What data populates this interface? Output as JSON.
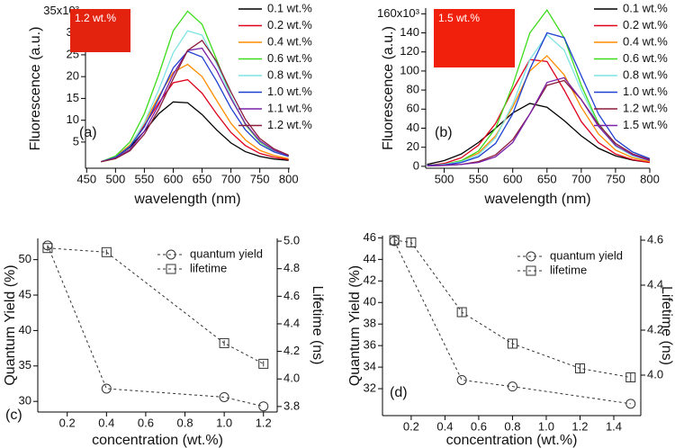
{
  "chart_data": [
    {
      "type": "line",
      "xlabel": "wavelength (nm)",
      "ylabel": "Fluorescence (a.u.)",
      "panel_label": "(a)",
      "inset": {
        "label": "1.2 wt.%",
        "color": "#e4230f"
      },
      "xlim": [
        448,
        802
      ],
      "ylim": [
        -1000,
        35500
      ],
      "xticks": [
        450,
        500,
        550,
        600,
        650,
        700,
        750,
        800
      ],
      "yticks": [
        {
          "value": 5000,
          "label": "5"
        },
        {
          "value": 10000,
          "label": "10"
        },
        {
          "value": 15000,
          "label": "15"
        },
        {
          "value": 20000,
          "label": "20"
        },
        {
          "value": 25000,
          "label": "25"
        },
        {
          "value": 30000,
          "label": "30"
        },
        {
          "value": 35000,
          "label": "35x10³"
        }
      ],
      "x": [
        475,
        500,
        525,
        550,
        575,
        600,
        625,
        650,
        675,
        700,
        725,
        750,
        775,
        800
      ],
      "series": [
        {
          "name": "0.1 wt.%",
          "color": "#000000",
          "values": [
            500,
            1500,
            3800,
            7500,
            11500,
            14200,
            14000,
            11300,
            7800,
            4800,
            2800,
            1700,
            1100,
            800
          ]
        },
        {
          "name": "0.2 wt.%",
          "color": "#e0001a",
          "values": [
            500,
            1600,
            4200,
            8800,
            14000,
            18600,
            19300,
            16200,
            11500,
            7200,
            4200,
            2400,
            1500,
            1000
          ]
        },
        {
          "name": "0.4 wt.%",
          "color": "#ff8c00",
          "values": [
            500,
            1600,
            4300,
            9300,
            15500,
            21000,
            22800,
            20000,
            14600,
            9300,
            5500,
            3100,
            1900,
            1200
          ]
        },
        {
          "name": "0.6 wt.%",
          "color": "#3ddc1a",
          "values": [
            500,
            1800,
            5000,
            11500,
            20500,
            30500,
            35000,
            32000,
            24000,
            15500,
            9000,
            5000,
            2900,
            1800
          ]
        },
        {
          "name": "0.8 wt.%",
          "color": "#7fe3e3",
          "values": [
            500,
            1500,
            4000,
            9500,
            17000,
            25500,
            30500,
            29500,
            23000,
            15500,
            9200,
            5200,
            3000,
            1900
          ]
        },
        {
          "name": "1.0 wt.%",
          "color": "#1f3fd0",
          "values": [
            500,
            1500,
            4000,
            8500,
            15000,
            22000,
            25800,
            24500,
            19000,
            12800,
            7800,
            4500,
            2700,
            1700
          ]
        },
        {
          "name": "1.1 wt.%",
          "color": "#7a22a8",
          "values": [
            500,
            1300,
            3300,
            7500,
            13500,
            20500,
            26000,
            26500,
            21500,
            15000,
            9200,
            5300,
            3100,
            1900
          ]
        },
        {
          "name": "1.2 wt.%",
          "color": "#8b1c3c",
          "values": [
            500,
            1200,
            3000,
            6800,
            12500,
            19500,
            26000,
            28300,
            23500,
            16500,
            10200,
            5800,
            3400,
            2000
          ]
        }
      ]
    },
    {
      "type": "line",
      "xlabel": "wavelength (nm)",
      "ylabel": "Fluorescence (a.u.)",
      "panel_label": "(b)",
      "inset": {
        "label": "1.5 wt.%",
        "color": "#f0200c"
      },
      "xlim": [
        473,
        800
      ],
      "ylim": [
        -2000,
        166000
      ],
      "xticks": [
        500,
        550,
        600,
        650,
        700,
        750,
        800
      ],
      "yticks": [
        0,
        {
          "value": 20000,
          "label": "20"
        },
        {
          "value": 40000,
          "label": "40"
        },
        {
          "value": 60000,
          "label": "60"
        },
        {
          "value": 80000,
          "label": "80"
        },
        {
          "value": 100000,
          "label": "100"
        },
        {
          "value": 120000,
          "label": "120"
        },
        {
          "value": 140000,
          "label": "140"
        },
        {
          "value": 160000,
          "label": "160x10³"
        }
      ],
      "x": [
        475,
        500,
        525,
        550,
        575,
        600,
        625,
        650,
        675,
        700,
        725,
        750,
        775,
        800
      ],
      "series": [
        {
          "name": "0.1 wt.%",
          "color": "#000000",
          "values": [
            2000,
            6000,
            13000,
            25000,
            40000,
            56000,
            66000,
            62000,
            48000,
            32000,
            19000,
            11000,
            6500,
            4000
          ]
        },
        {
          "name": "0.2 wt.%",
          "color": "#e0001a",
          "values": [
            1000,
            3000,
            9000,
            22000,
            45000,
            80000,
            112000,
            110000,
            80000,
            47000,
            25000,
            13000,
            7000,
            4000
          ]
        },
        {
          "name": "0.4 wt.%",
          "color": "#ff8c00",
          "values": [
            1000,
            2000,
            6000,
            14000,
            32000,
            62000,
            100000,
            116000,
            96000,
            62000,
            34000,
            17000,
            9000,
            5000
          ]
        },
        {
          "name": "0.6 wt.%",
          "color": "#3ddc1a",
          "values": [
            1000,
            2000,
            6000,
            16000,
            40000,
            85000,
            140000,
            164000,
            135000,
            85000,
            45000,
            22000,
            11000,
            6000
          ]
        },
        {
          "name": "0.8 wt.%",
          "color": "#7fe3e3",
          "values": [
            1000,
            2000,
            5000,
            12000,
            30000,
            65000,
            112000,
            138000,
            122000,
            80000,
            43000,
            21000,
            11000,
            6000
          ]
        },
        {
          "name": "1.0 wt.%",
          "color": "#1f3fd0",
          "values": [
            1000,
            1500,
            4000,
            10000,
            24000,
            55000,
            102000,
            140000,
            135000,
            95000,
            55000,
            28000,
            15000,
            8000
          ]
        },
        {
          "name": "1.2 wt.%",
          "color": "#8b1c3c",
          "values": [
            500,
            1000,
            2000,
            5000,
            12000,
            28000,
            55000,
            85000,
            90000,
            70000,
            44000,
            24000,
            13000,
            7000
          ]
        },
        {
          "name": "1.5 wt.%",
          "color": "#7a22a8",
          "values": [
            500,
            1000,
            2000,
            4000,
            10000,
            25000,
            55000,
            88000,
            93000,
            70000,
            42000,
            22000,
            12000,
            6000
          ]
        }
      ]
    },
    {
      "type": "line",
      "xlabel": "concentration (wt.%)",
      "ylabel": "Quantum Yield (%)",
      "y2label": "Lifetime (ns)",
      "panel_label": "(c)",
      "xlim": [
        0.05,
        1.27
      ],
      "ylim": [
        28.5,
        53
      ],
      "y2lim": [
        3.76,
        5.02
      ],
      "xticks": [
        0.2,
        0.4,
        0.6,
        0.8,
        {
          "value": 1,
          "label": "1.0"
        },
        1.2
      ],
      "yticks": [
        30,
        35,
        40,
        45,
        50
      ],
      "y2ticks": [
        3.8,
        {
          "value": 4,
          "label": "4.0"
        },
        4.2,
        4.4,
        4.6,
        4.8,
        {
          "value": 5,
          "label": "5.0"
        }
      ],
      "series": [
        {
          "name": "quantum yield",
          "color": "#333333",
          "marker": "circle",
          "axis": "y",
          "x": [
            0.1,
            0.4,
            1,
            1.2
          ],
          "values": [
            52,
            31.8,
            30.6,
            29.3
          ]
        },
        {
          "name": "lifetime",
          "color": "#333333",
          "marker": "square",
          "axis": "y2",
          "x": [
            0.1,
            0.4,
            1,
            1.2
          ],
          "values": [
            4.95,
            4.92,
            4.26,
            4.11
          ],
          "errors": [
            0.02,
            0.02,
            0.02,
            0.02
          ]
        }
      ]
    },
    {
      "type": "line",
      "xlabel": "concentration (wt.%)",
      "ylabel": "Quantum Yield (%)",
      "y2label": "Lifetime (ns)",
      "panel_label": "(d)",
      "xlim": [
        0.03,
        1.56
      ],
      "ylim": [
        29.5,
        46.2
      ],
      "y2lim": [
        3.82,
        4.62
      ],
      "xticks": [
        0.2,
        0.4,
        0.6,
        0.8,
        {
          "value": 1,
          "label": "1.0"
        },
        1.2,
        1.4
      ],
      "yticks": [
        32,
        34,
        36,
        38,
        40,
        42,
        44,
        46
      ],
      "y2ticks": [
        {
          "value": 4,
          "label": "4.0"
        },
        4.2,
        4.4,
        4.6
      ],
      "series": [
        {
          "name": "quantum yield",
          "color": "#333333",
          "marker": "circle",
          "axis": "y",
          "x": [
            0.1,
            0.5,
            0.8,
            1.5
          ],
          "values": [
            45.7,
            32.8,
            32.2,
            30.6
          ]
        },
        {
          "name": "lifetime",
          "color": "#333333",
          "marker": "square",
          "axis": "y2",
          "x": [
            0.1,
            0.2,
            0.5,
            0.8,
            1.2,
            1.5
          ],
          "values": [
            4.6,
            4.59,
            4.28,
            4.14,
            4.03,
            3.99
          ],
          "errors": [
            0.02,
            0.02,
            0.02,
            0.02,
            0.02,
            0.02
          ]
        }
      ]
    }
  ]
}
